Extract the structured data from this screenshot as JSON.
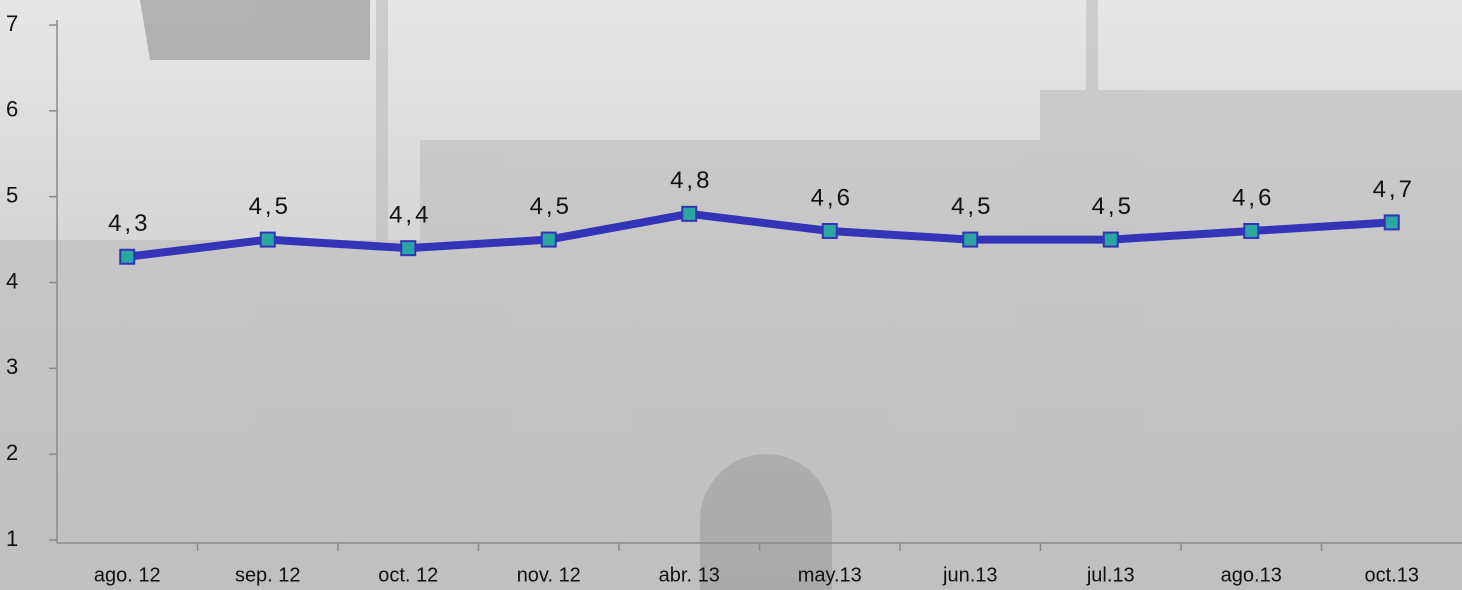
{
  "chart_data": {
    "type": "line",
    "categories": [
      "ago. 12",
      "sep. 12",
      "oct. 12",
      "nov. 12",
      "abr. 13",
      "may.13",
      "jun.13",
      "jul.13",
      "ago.13",
      "oct.13"
    ],
    "series": [
      {
        "color": "#3434b8",
        "marker_color": "#2aa7a2",
        "values": [
          4.3,
          4.5,
          4.4,
          4.5,
          4.8,
          4.6,
          4.5,
          4.5,
          4.6,
          4.7
        ],
        "value_labels": [
          "4,3",
          "4,5",
          "4,4",
          "4,5",
          "4,8",
          "4,6",
          "4,5",
          "4,5",
          "4,6",
          "4,7"
        ]
      }
    ],
    "ylim": [
      1,
      7
    ],
    "yticks": [
      1,
      2,
      3,
      4,
      5,
      6,
      7
    ]
  }
}
